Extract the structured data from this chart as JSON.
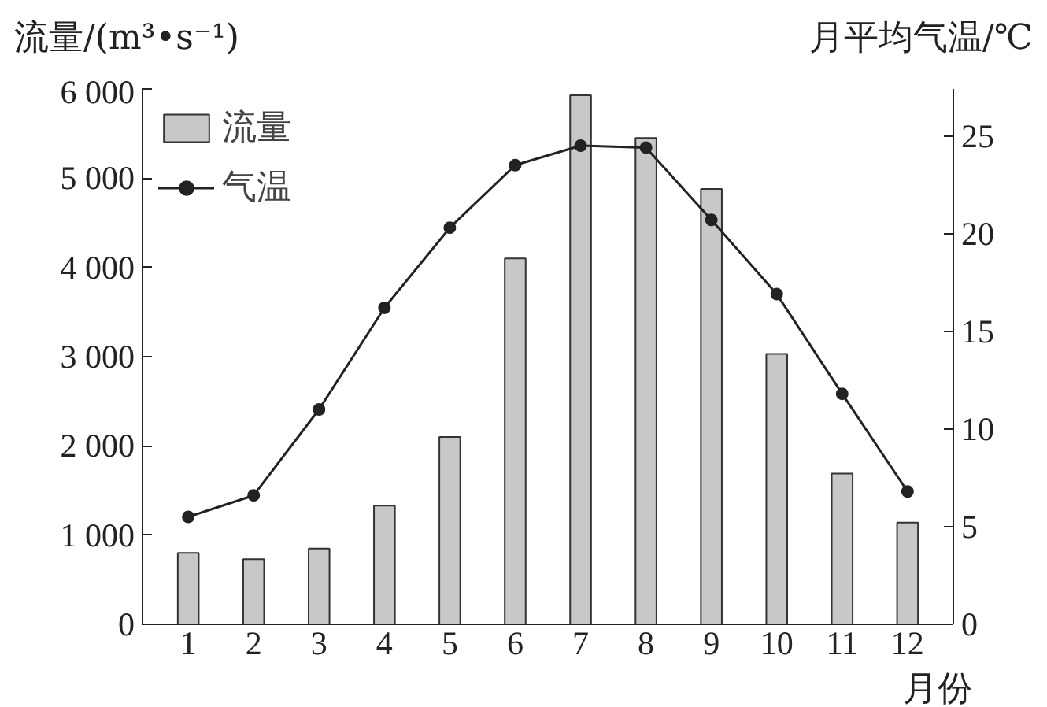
{
  "chart_data": {
    "type": "bar",
    "categories": [
      "1",
      "2",
      "3",
      "4",
      "5",
      "6",
      "7",
      "8",
      "9",
      "10",
      "11",
      "12"
    ],
    "xlabel": "月份",
    "ylabel": "流量/(m³•s⁻¹)",
    "y2label": "月平均气温/℃",
    "series": [
      {
        "name": "流量",
        "color": "#c8c8c8",
        "values": [
          800,
          730,
          850,
          1330,
          2100,
          4100,
          5930,
          5450,
          4880,
          3030,
          1690,
          1140
        ]
      },
      {
        "name": "气温",
        "type": "line",
        "axis": "y2",
        "color": "#222222",
        "marker": "circle",
        "values": [
          5.5,
          6.6,
          11.0,
          16.2,
          20.3,
          23.5,
          24.5,
          24.4,
          20.7,
          16.9,
          11.8,
          6.8
        ]
      }
    ],
    "ylim": [
      0,
      6000
    ],
    "yticks": [
      0,
      {
        "value": 1000,
        "label": "1 000"
      },
      {
        "value": 2000,
        "label": "2 000"
      },
      {
        "value": 3000,
        "label": "3 000"
      },
      {
        "value": 4000,
        "label": "4 000"
      },
      {
        "value": 5000,
        "label": "5 000"
      },
      {
        "value": 6000,
        "label": "6 000"
      }
    ],
    "y2lim": [
      0,
      27.4
    ],
    "y2ticks": [
      0,
      5,
      10,
      15,
      20,
      25
    ],
    "grid": false,
    "legend": "top left"
  }
}
